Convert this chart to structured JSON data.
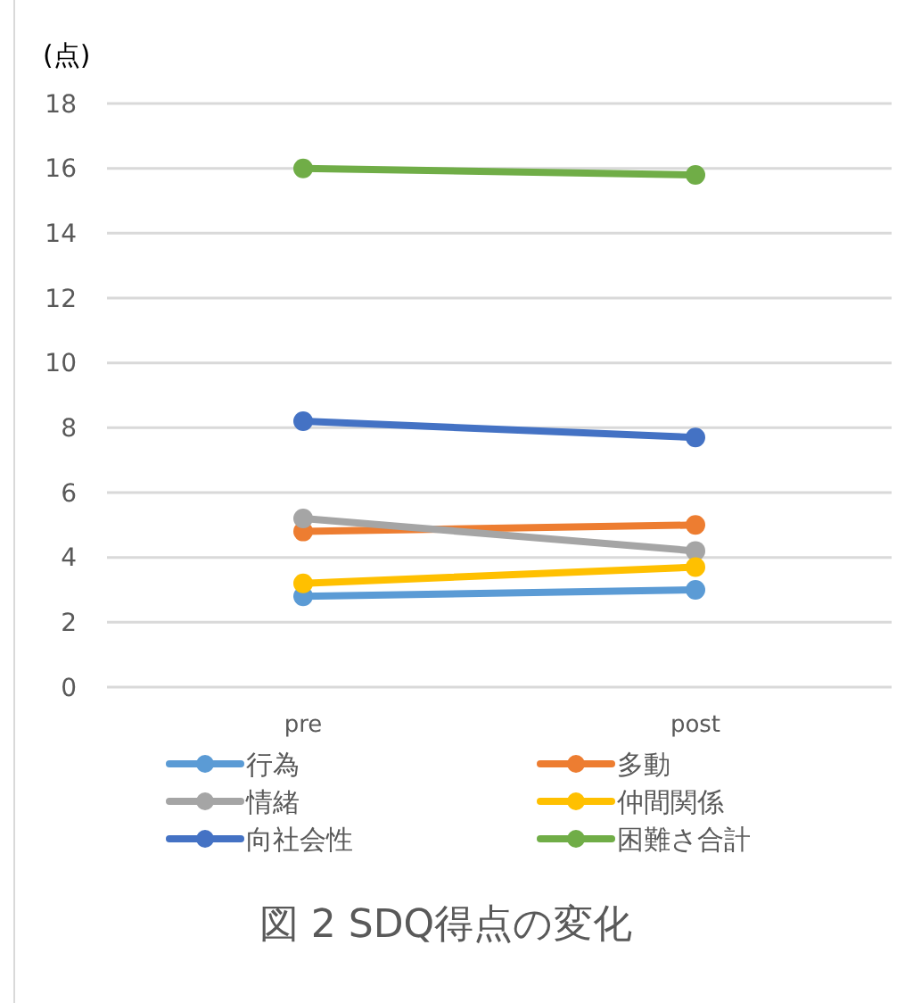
{
  "chart_data": {
    "type": "line",
    "title": "図 2 SDQ得点の変化",
    "ylabel": "(点)",
    "categories": [
      "pre",
      "post"
    ],
    "series": [
      {
        "name": "行為",
        "color": "#5b9bd5",
        "values": [
          2.8,
          3.0
        ]
      },
      {
        "name": "多動",
        "color": "#ed7d31",
        "values": [
          4.8,
          5.0
        ]
      },
      {
        "name": "情緒",
        "color": "#a5a5a5",
        "values": [
          5.2,
          4.2
        ]
      },
      {
        "name": "仲間関係",
        "color": "#ffc000",
        "values": [
          3.2,
          3.7
        ]
      },
      {
        "name": "向社会性",
        "color": "#4472c4",
        "values": [
          8.2,
          7.7
        ]
      },
      {
        "name": "困難さ合計",
        "color": "#70ad47",
        "values": [
          16.0,
          15.8
        ]
      }
    ],
    "ylim": [
      0,
      18
    ],
    "yticks": [
      0,
      2,
      4,
      6,
      8,
      10,
      12,
      14,
      16,
      18
    ],
    "grid": "y",
    "legend": "bottom",
    "marker": "circle",
    "line_style": "solid"
  }
}
